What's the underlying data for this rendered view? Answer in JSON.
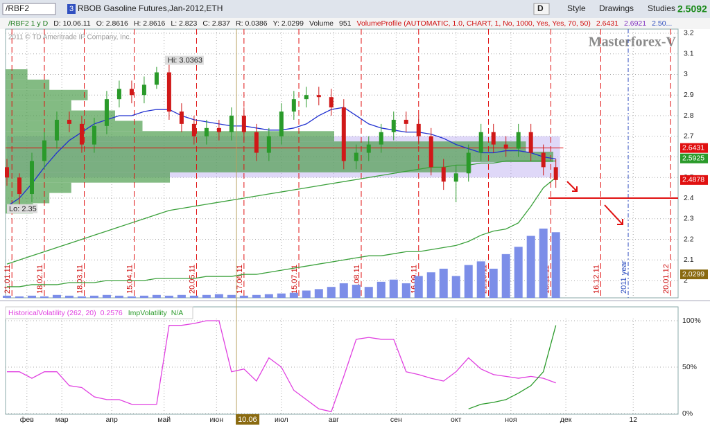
{
  "toolbar": {
    "symbol": "/RBF2",
    "link": "3",
    "description": "RBOB Gasoline Futures,Jan-2012,ETH",
    "aggregation": "D",
    "style": "Style",
    "drawings": "Drawings",
    "studies": "Studies",
    "last": "2.5092"
  },
  "info_row": {
    "study": "/RBF2 1 y D",
    "date": "D: 10.06.11",
    "open": "O: 2.8616",
    "high": "H: 2.8616",
    "low": "L: 2.823",
    "close": "C: 2.837",
    "range": "R: 0.0386",
    "y": "Y: 2.0299",
    "volume_label": "Volume",
    "volume": "951",
    "profile": "VolumeProfile (AUTOMATIC, 1.0, CHART, 1, No, 1000, Yes, Yes, 70, 50)",
    "p1": "2.6431",
    "p2": "2.6921",
    "p3": "2.50..."
  },
  "copyright": "2011 © TD Ameritrade IP Company, Inc.",
  "watermark": "Masterforex-V",
  "chart_data": [
    {
      "type": "candlestick",
      "xlim": [
        0,
        269
      ],
      "ylim": [
        1.916,
        3.22
      ],
      "yticks": [
        2,
        2.1,
        2.2,
        2.3,
        2.4,
        2.5,
        2.6,
        2.7,
        2.8,
        2.9,
        3,
        3.1,
        3.2
      ],
      "grid": true,
      "up_color": "#2a9a2a",
      "down_color": "#d01818",
      "x": [
        0,
        5,
        10,
        15,
        20,
        25,
        30,
        35,
        40,
        45,
        50,
        55,
        60,
        65,
        70,
        75,
        80,
        85,
        90,
        95,
        100,
        105,
        110,
        115,
        120,
        125,
        130,
        135,
        140,
        145,
        150,
        155,
        160,
        165,
        170,
        175,
        180,
        185,
        190,
        195,
        200,
        205,
        210,
        215,
        220
      ],
      "open": [
        2.55,
        2.5,
        2.42,
        2.58,
        2.68,
        2.78,
        2.76,
        2.66,
        2.75,
        2.88,
        2.93,
        2.9,
        2.95,
        3.01,
        2.82,
        2.76,
        2.7,
        2.74,
        2.72,
        2.8,
        2.72,
        2.62,
        2.7,
        2.82,
        2.88,
        2.9,
        2.89,
        2.84,
        2.58,
        2.62,
        2.66,
        2.72,
        2.78,
        2.76,
        2.7,
        2.55,
        2.48,
        2.52,
        2.62,
        2.72,
        2.66,
        2.64,
        2.72,
        2.62,
        2.55
      ],
      "high": [
        2.59,
        2.52,
        2.62,
        2.72,
        2.82,
        2.82,
        2.8,
        2.79,
        2.92,
        2.97,
        2.97,
        2.99,
        3.0363,
        3.05,
        2.86,
        2.8,
        2.78,
        2.78,
        2.84,
        2.84,
        2.76,
        2.74,
        2.86,
        2.92,
        2.94,
        2.94,
        2.93,
        2.88,
        2.66,
        2.7,
        2.76,
        2.82,
        2.82,
        2.8,
        2.74,
        2.59,
        2.56,
        2.66,
        2.76,
        2.76,
        2.7,
        2.76,
        2.76,
        2.66,
        2.59
      ],
      "low": [
        2.46,
        2.35,
        2.38,
        2.54,
        2.64,
        2.72,
        2.62,
        2.62,
        2.71,
        2.84,
        2.86,
        2.86,
        2.93,
        2.78,
        2.72,
        2.66,
        2.66,
        2.68,
        2.68,
        2.68,
        2.58,
        2.58,
        2.66,
        2.78,
        2.84,
        2.85,
        2.8,
        2.54,
        2.54,
        2.58,
        2.62,
        2.68,
        2.72,
        2.66,
        2.51,
        2.44,
        2.38,
        2.48,
        2.58,
        2.62,
        2.6,
        2.6,
        2.58,
        2.51,
        2.45
      ],
      "close": [
        2.5,
        2.42,
        2.58,
        2.68,
        2.78,
        2.76,
        2.66,
        2.75,
        2.88,
        2.93,
        2.9,
        2.95,
        3.01,
        2.82,
        2.76,
        2.7,
        2.74,
        2.72,
        2.8,
        2.72,
        2.62,
        2.7,
        2.82,
        2.88,
        2.9,
        2.89,
        2.84,
        2.58,
        2.62,
        2.66,
        2.72,
        2.78,
        2.76,
        2.7,
        2.55,
        2.48,
        2.52,
        2.62,
        2.72,
        2.66,
        2.64,
        2.72,
        2.62,
        2.55,
        2.4878
      ],
      "series": [
        {
          "color": "#2030d0",
          "values": [
            2.36,
            2.4,
            2.47,
            2.55,
            2.62,
            2.68,
            2.72,
            2.76,
            2.78,
            2.8,
            2.8,
            2.82,
            2.83,
            2.83,
            2.8,
            2.78,
            2.77,
            2.76,
            2.75,
            2.75,
            2.74,
            2.73,
            2.73,
            2.74,
            2.76,
            2.8,
            2.83,
            2.84,
            2.8,
            2.76,
            2.74,
            2.73,
            2.72,
            2.72,
            2.71,
            2.69,
            2.66,
            2.64,
            2.62,
            2.62,
            2.63,
            2.63,
            2.62,
            2.6,
            2.59
          ]
        },
        {
          "color": "#3aa03a",
          "values": [
            2.08,
            2.1,
            2.12,
            2.14,
            2.16,
            2.18,
            2.2,
            2.22,
            2.24,
            2.26,
            2.28,
            2.3,
            2.32,
            2.34,
            2.35,
            2.36,
            2.37,
            2.38,
            2.39,
            2.4,
            2.41,
            2.42,
            2.43,
            2.44,
            2.45,
            2.46,
            2.47,
            2.48,
            2.49,
            2.5,
            2.51,
            2.52,
            2.53,
            2.54,
            2.55,
            2.55,
            2.56,
            2.56,
            2.57,
            2.57,
            2.58,
            2.58,
            2.58,
            2.58,
            2.58
          ]
        },
        {
          "color": "#3aa03a",
          "values": [
            1.97,
            1.97,
            1.98,
            1.98,
            1.98,
            1.99,
            1.99,
            1.99,
            2,
            2,
            2,
            2,
            2.01,
            2.01,
            2.01,
            2.01,
            2.02,
            2.02,
            2.02,
            2.03,
            2.03,
            2.04,
            2.05,
            2.06,
            2.07,
            2.08,
            2.09,
            2.1,
            2.11,
            2.12,
            2.12,
            2.13,
            2.14,
            2.14,
            2.15,
            2.16,
            2.17,
            2.19,
            2.22,
            2.24,
            2.25,
            2.28,
            2.36,
            2.45,
            2.5
          ]
        }
      ],
      "volume_color": "#7c8ee8",
      "volume": [
        3,
        2,
        3,
        2,
        4,
        3,
        2,
        3,
        4,
        3,
        2,
        3,
        4,
        3,
        4,
        3,
        4,
        5,
        4,
        3,
        4,
        5,
        6,
        7,
        10,
        12,
        15,
        20,
        18,
        15,
        22,
        25,
        20,
        30,
        35,
        40,
        30,
        45,
        50,
        40,
        60,
        70,
        85,
        95,
        90
      ],
      "profile_color": "#4e9e4e",
      "profile_levels": [
        2.35,
        2.4,
        2.45,
        2.5,
        2.55,
        2.6,
        2.65,
        2.7,
        2.75,
        2.8,
        2.85,
        2.9,
        2.95,
        3
      ],
      "profile_values": [
        5,
        8,
        12,
        30,
        85,
        100,
        95,
        60,
        25,
        20,
        12,
        15,
        8,
        4
      ],
      "band": [
        2.5,
        2.7
      ],
      "band_color": "#b8a8f0",
      "lines": [
        {
          "value": 2.6431,
          "color": "#e01010"
        },
        {
          "value": 2.4,
          "color": "#e01010"
        }
      ],
      "price_labels": [
        {
          "value": 2.6431,
          "color": "#e01010"
        },
        {
          "value": 2.5925,
          "color": "#2a9a2a"
        },
        {
          "value": 2.4878,
          "color": "#e01010"
        },
        {
          "value": 2.0299,
          "color": "#8a6a10"
        }
      ],
      "hi_label": "Hi: 3.0363",
      "lo_label": "Lo: 2.35",
      "date_markers": [
        {
          "value": 2,
          "label": "21.01.11"
        },
        {
          "value": 15,
          "label": "18.02.11"
        },
        {
          "value": 31,
          "label": "18.03.11"
        },
        {
          "value": 51,
          "label": "15.04.11"
        },
        {
          "value": 76,
          "label": "20.05.11"
        },
        {
          "value": 95,
          "label": "17.06.11"
        },
        {
          "value": 117,
          "label": "15.07.11"
        },
        {
          "value": 142,
          "label": "19.08.11"
        },
        {
          "value": 165,
          "label": "16.09.11"
        },
        {
          "value": 193,
          "label": "21.10.11"
        },
        {
          "value": 218,
          "label": "18.11.11"
        },
        {
          "value": 238,
          "label": "16.12.11"
        },
        {
          "value": 266,
          "label": "20.01.12"
        }
      ],
      "year_marker": {
        "value": 249,
        "label": "2011 year"
      }
    },
    {
      "type": "line",
      "xlim": [
        0,
        269
      ],
      "ylim": [
        0,
        100
      ],
      "yticks": [
        {
          "value": 0,
          "label": "0%"
        },
        {
          "value": 50,
          "label": "50%"
        },
        {
          "value": 100,
          "label": "100%"
        }
      ],
      "grid": true,
      "xticks": [
        {
          "value": 8,
          "label": "фев"
        },
        {
          "value": 22,
          "label": "мар"
        },
        {
          "value": 42,
          "label": "апр"
        },
        {
          "value": 63,
          "label": "май"
        },
        {
          "value": 84,
          "label": "июн"
        },
        {
          "value": 110,
          "label": "июл"
        },
        {
          "value": 131,
          "label": "авг"
        },
        {
          "value": 156,
          "label": "сен"
        },
        {
          "value": 180,
          "label": "окт"
        },
        {
          "value": 202,
          "label": "ноя"
        },
        {
          "value": 224,
          "label": "дек"
        },
        {
          "value": 251,
          "label": "12"
        }
      ],
      "cursor": {
        "value": 92,
        "label": "10.06"
      },
      "x": [
        0,
        5,
        10,
        15,
        20,
        25,
        30,
        35,
        40,
        45,
        50,
        55,
        60,
        65,
        70,
        75,
        80,
        85,
        90,
        95,
        100,
        105,
        110,
        115,
        120,
        125,
        130,
        135,
        140,
        145,
        150,
        155,
        160,
        165,
        170,
        175,
        180,
        185,
        190,
        195,
        200,
        205,
        210,
        215,
        220
      ],
      "series": [
        {
          "name": "HistoricalVolatility (262, 20)",
          "last_label": "0.2576",
          "color": "#e040e0",
          "values": [
            45,
            45,
            38,
            45,
            45,
            30,
            28,
            18,
            15,
            15,
            10,
            10,
            10,
            95,
            95,
            97,
            100,
            100,
            45,
            48,
            35,
            60,
            50,
            25,
            15,
            5,
            2,
            40,
            80,
            82,
            80,
            80,
            45,
            42,
            38,
            35,
            45,
            60,
            48,
            42,
            40,
            38,
            40,
            38,
            33
          ]
        },
        {
          "name": "ImpVolatility",
          "last_label": "N/A",
          "color": "#2a9a2a",
          "values": [
            null,
            null,
            null,
            null,
            null,
            null,
            null,
            null,
            null,
            null,
            null,
            null,
            null,
            null,
            null,
            null,
            null,
            null,
            null,
            null,
            null,
            null,
            null,
            null,
            null,
            null,
            null,
            null,
            null,
            null,
            null,
            null,
            null,
            null,
            null,
            null,
            null,
            5,
            10,
            12,
            15,
            22,
            30,
            45,
            95
          ]
        }
      ]
    }
  ]
}
